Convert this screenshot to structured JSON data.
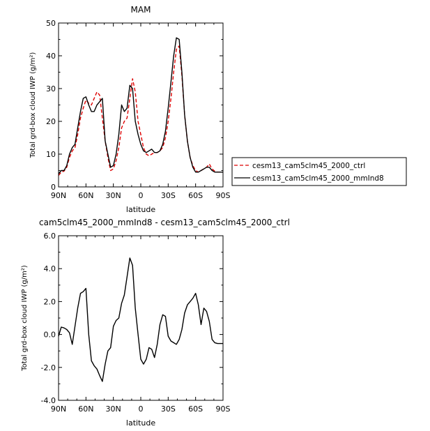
{
  "chart_data": [
    {
      "type": "line",
      "title": "MAM",
      "xlabel": "latitude",
      "ylabel": "Total grd-box cloud IWP (g/m²)",
      "xlim": [
        90,
        -90
      ],
      "ylim": [
        0,
        50
      ],
      "x_tick_values": [
        90,
        60,
        30,
        0,
        -30,
        -60,
        -90
      ],
      "x_tick_labels": [
        "90N",
        "60N",
        "30N",
        "0",
        "30S",
        "60S",
        "90S"
      ],
      "y_tick_values": [
        0,
        10,
        20,
        30,
        40,
        50
      ],
      "y_tick_labels": [
        "0",
        "10",
        "20",
        "30",
        "40",
        "50"
      ],
      "legend_position": "right",
      "series": [
        {
          "name": "cesm13_cam5clm45_2000_ctrl",
          "color": "#dd0000",
          "dash": "dashed",
          "x": [
            90,
            87,
            84,
            81,
            78,
            75,
            72,
            69,
            66,
            63,
            60,
            57,
            54,
            51,
            48,
            45,
            42,
            39,
            36,
            33,
            30,
            27,
            24,
            21,
            18,
            15,
            12,
            9,
            6,
            3,
            0,
            -3,
            -6,
            -9,
            -12,
            -15,
            -18,
            -21,
            -24,
            -27,
            -30,
            -33,
            -36,
            -39,
            -42,
            -45,
            -48,
            -51,
            -54,
            -57,
            -60,
            -63,
            -66,
            -69,
            -72,
            -75,
            -78,
            -81,
            -84,
            -87,
            -90
          ],
          "y": [
            3.5,
            4.5,
            4.8,
            6,
            9,
            11,
            12,
            16,
            21,
            24,
            26.5,
            25.5,
            25,
            27,
            29,
            28,
            21,
            14,
            9,
            5,
            5.5,
            8,
            12,
            18,
            20,
            21,
            27,
            33,
            29,
            20,
            16,
            12,
            10,
            9.5,
            10,
            10.5,
            10.5,
            11,
            12,
            15,
            20,
            27,
            35,
            42,
            43,
            34,
            22,
            14,
            9,
            6.5,
            5,
            4.5,
            5,
            5.5,
            6,
            7,
            5.5,
            4.8,
            4.5,
            4.5,
            4.5
          ]
        },
        {
          "name": "cesm13_cam5clm45_2000_mmInd8",
          "color": "#000000",
          "dash": "solid",
          "x": [
            90,
            87,
            84,
            81,
            78,
            75,
            72,
            69,
            66,
            63,
            60,
            57,
            54,
            51,
            48,
            45,
            42,
            39,
            36,
            33,
            30,
            27,
            24,
            21,
            18,
            15,
            12,
            9,
            6,
            3,
            0,
            -3,
            -6,
            -9,
            -12,
            -15,
            -18,
            -21,
            -24,
            -27,
            -30,
            -33,
            -36,
            -39,
            -42,
            -45,
            -48,
            -51,
            -54,
            -57,
            -60,
            -63,
            -66,
            -69,
            -72,
            -75,
            -78,
            -81,
            -84,
            -87,
            -90
          ],
          "y": [
            4,
            5,
            5,
            6.5,
            10,
            12,
            13,
            18,
            23,
            27,
            27.5,
            25,
            23,
            23,
            25,
            26,
            27,
            14,
            10,
            6,
            6.5,
            10,
            16,
            25,
            23,
            24,
            31,
            30,
            20,
            16,
            13,
            11,
            10.5,
            11,
            11.5,
            10.5,
            10.5,
            11,
            13,
            17,
            24,
            32,
            40,
            45.5,
            45,
            35,
            22,
            14,
            9,
            6,
            4.5,
            4.5,
            5,
            5.5,
            6,
            6,
            5,
            4.5,
            4.5,
            4.5,
            4.5
          ]
        }
      ]
    },
    {
      "type": "line",
      "title": "cam5clm45_2000_mmInd8 - cesm13_cam5clm45_2000_ctrl",
      "xlabel": "latitude",
      "ylabel": "Total grd-box cloud IWP (g/m²)",
      "xlim": [
        90,
        -90
      ],
      "ylim": [
        -4,
        6
      ],
      "x_tick_values": [
        90,
        60,
        30,
        0,
        -30,
        -60,
        -90
      ],
      "x_tick_labels": [
        "90N",
        "60N",
        "30N",
        "0",
        "30S",
        "60S",
        "90S"
      ],
      "y_tick_values": [
        -4,
        -2,
        0,
        2,
        4,
        6
      ],
      "y_tick_labels": [
        "-4.0",
        "-2.0",
        "0.0",
        "2.0",
        "4.0",
        "6.0"
      ],
      "series": [
        {
          "name": "",
          "color": "#000000",
          "dash": "solid",
          "x": [
            90,
            87,
            84,
            81,
            78,
            75,
            72,
            69,
            66,
            63,
            60,
            57,
            54,
            51,
            48,
            45,
            42,
            39,
            36,
            33,
            30,
            27,
            24,
            21,
            18,
            15,
            12,
            9,
            6,
            3,
            0,
            -3,
            -6,
            -9,
            -12,
            -15,
            -18,
            -21,
            -24,
            -27,
            -30,
            -33,
            -36,
            -39,
            -42,
            -45,
            -48,
            -51,
            -54,
            -57,
            -60,
            -63,
            -66,
            -69,
            -72,
            -75,
            -78,
            -81,
            -84,
            -87,
            -90
          ],
          "y": [
            -0.1,
            0.45,
            0.4,
            0.3,
            0.1,
            -0.6,
            0.5,
            1.6,
            2.5,
            2.6,
            2.8,
            0,
            -1.6,
            -1.9,
            -2.1,
            -2.5,
            -2.85,
            -1.8,
            -1.0,
            -0.8,
            0.5,
            0.85,
            1.0,
            1.9,
            2.4,
            3.5,
            4.65,
            4.2,
            1.6,
            0,
            -1.5,
            -1.8,
            -1.5,
            -0.8,
            -0.9,
            -1.4,
            -0.6,
            0.6,
            1.2,
            1.1,
            -0.1,
            -0.4,
            -0.5,
            -0.6,
            -0.3,
            0.3,
            1.3,
            1.8,
            2.0,
            2.2,
            2.5,
            1.8,
            0.6,
            1.6,
            1.4,
            0.8,
            -0.3,
            -0.5,
            -0.55,
            -0.55,
            -0.55
          ]
        }
      ]
    }
  ]
}
